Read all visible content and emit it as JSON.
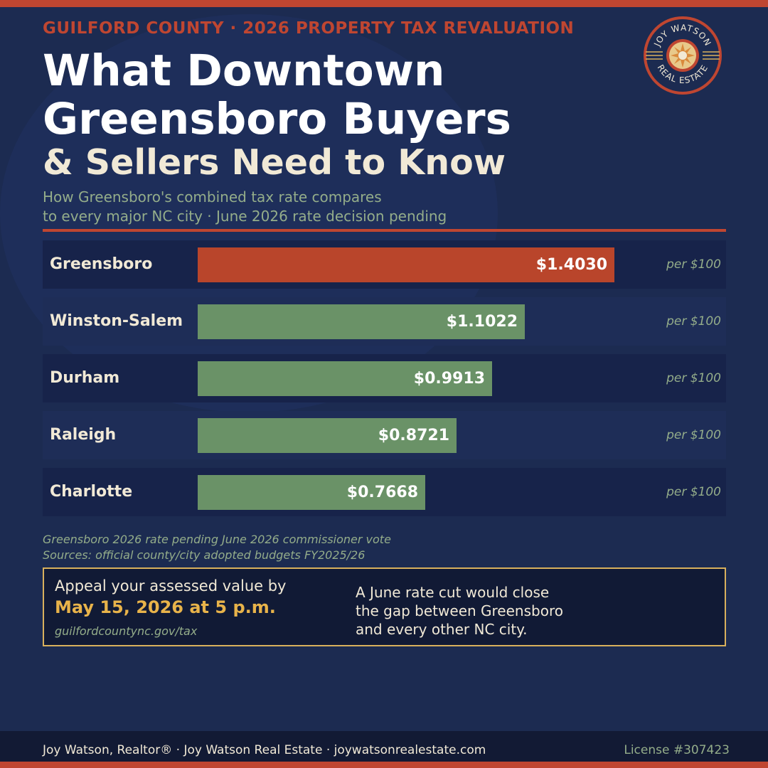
{
  "colors": {
    "background": "#1c2b51",
    "accent": "#bf4631",
    "highlight_bar": "#b9452b",
    "bar": "#6a9267",
    "muted_text": "#94ad8a",
    "cream": "#f1e9d6",
    "gold": "#e8b34a"
  },
  "header": {
    "eyebrow": "GUILFORD COUNTY  ·  2026 PROPERTY TAX REVALUATION",
    "title_line1": "What Downtown",
    "title_line2": "Greensboro Buyers",
    "title_line3": "& Sellers Need to Know",
    "subtitle_line1": "How Greensboro's combined tax rate compares",
    "subtitle_line2": "to every major NC city  ·  June 2026 rate decision pending"
  },
  "logo": {
    "text_top": "JOY WATSON",
    "text_bottom": "REAL ESTATE",
    "icon": "sunburst-icon"
  },
  "chart_data": {
    "type": "bar",
    "orientation": "horizontal",
    "categories": [
      "Greensboro",
      "Winston-Salem",
      "Durham",
      "Raleigh",
      "Charlotte"
    ],
    "values": [
      1.403,
      1.1022,
      0.9913,
      0.8721,
      0.7668
    ],
    "value_labels": [
      "$1.4030",
      "$1.1022",
      "$0.9913",
      "$0.8721",
      "$0.7668"
    ],
    "unit_label": "per $100",
    "highlight_category": "Greensboro",
    "xlim": [
      0,
      1.6
    ],
    "grid": false
  },
  "notes": {
    "line1": "Greensboro 2026 rate pending June 2026 commissioner vote",
    "line2": "Sources: official county/city adopted budgets FY2025/26"
  },
  "cta": {
    "lead": "Appeal your assessed value by",
    "deadline": "May 15, 2026 at 5 p.m.",
    "link": "guilfordcountync.gov/tax",
    "note_line1": "A June rate cut would close",
    "note_line2": "the gap between Greensboro",
    "note_line3": "and every other NC city."
  },
  "footer": {
    "left": "Joy Watson, Realtor®  ·  Joy Watson Real Estate  ·  joywatsonrealestate.com",
    "right": "License #307423"
  }
}
